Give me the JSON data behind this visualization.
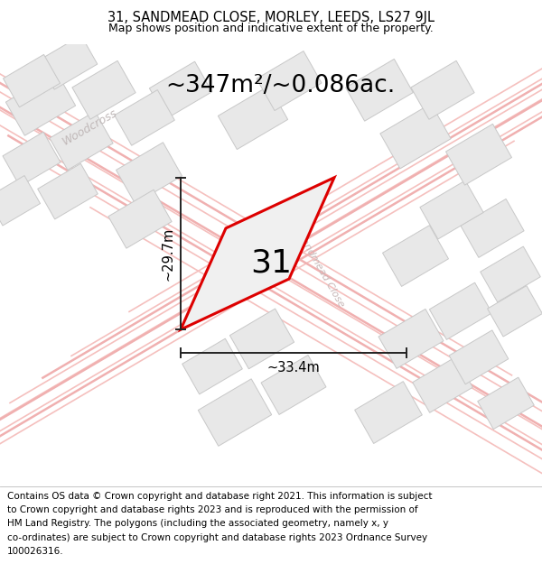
{
  "title_line1": "31, SANDMEAD CLOSE, MORLEY, LEEDS, LS27 9JL",
  "title_line2": "Map shows position and indicative extent of the property.",
  "area_text": "~347m²/~0.086ac.",
  "dim_width": "~33.4m",
  "dim_height": "~29.7m",
  "property_number": "31",
  "footer_lines": [
    "Contains OS data © Crown copyright and database right 2021. This information is subject",
    "to Crown copyright and database rights 2023 and is reproduced with the permission of",
    "HM Land Registry. The polygons (including the associated geometry, namely x, y",
    "co-ordinates) are subject to Crown copyright and database rights 2023 Ordnance Survey",
    "100026316."
  ],
  "map_bg": "#ffffff",
  "road_color": "#f5c0be",
  "road_color2": "#f0b0b0",
  "building_color": "#e8e8e8",
  "building_edge": "#c8c8c8",
  "property_edge": "#dd0000",
  "property_fill": "#f0f0f0",
  "dim_color": "#222222",
  "woodcross_color": "#c0b8b8",
  "sandmead_color": "#c8b8b8",
  "title_fontsize": 10.5,
  "subtitle_fontsize": 9,
  "area_fontsize": 19,
  "dim_fontsize": 10.5,
  "prop_num_fontsize": 26,
  "footer_fontsize": 7.5,
  "woodcross_fontsize": 9,
  "sandmead_fontsize": 8
}
